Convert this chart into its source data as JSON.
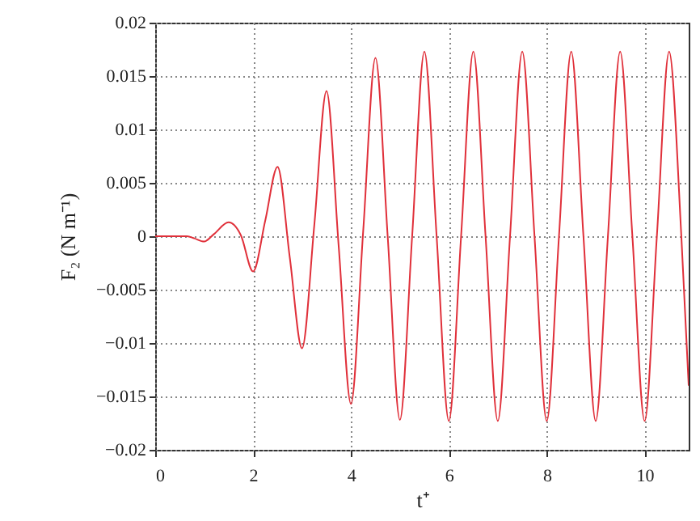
{
  "chart_data": {
    "type": "line",
    "xlabel": "t⁺",
    "ylabel": "F₂ (N m⁻¹)",
    "x": [
      0,
      0.25,
      0.5,
      0.65,
      0.8,
      1.0,
      1.2,
      1.5,
      1.75,
      2.0,
      2.25,
      2.5,
      2.75,
      3.0,
      3.25,
      3.5,
      3.75,
      4.0,
      4.25,
      4.5,
      4.75,
      5.0,
      5.25,
      5.5,
      5.75,
      6.0,
      6.25,
      6.5,
      6.75,
      7.0,
      7.25,
      7.5,
      7.75,
      8.0,
      8.25,
      8.5,
      8.75,
      9.0,
      9.25,
      9.5,
      9.75,
      10.0,
      10.25,
      10.5,
      10.75,
      10.9
    ],
    "series": [
      {
        "color": "#e0303a",
        "values": [
          0,
          0,
          0,
          0,
          -0.0002,
          -0.0005,
          0.0002,
          0.0013,
          0.0001,
          -0.0033,
          0.0015,
          0.0065,
          -0.002,
          -0.0105,
          0.001,
          0.0136,
          -0.001,
          -0.0157,
          0.0005,
          0.0167,
          0,
          -0.0172,
          0,
          0.0173,
          0,
          -0.0173,
          0,
          0.0173,
          0,
          -0.0173,
          0,
          0.0173,
          0,
          -0.0173,
          0,
          0.0173,
          0,
          -0.0173,
          0,
          0.0173,
          0,
          -0.0173,
          0,
          0.0173,
          0,
          -0.014
        ]
      }
    ],
    "xlim": [
      0,
      10.9
    ],
    "xticks": [
      0,
      2,
      4,
      6,
      8,
      10
    ],
    "ylim": [
      -0.02,
      0.02
    ],
    "yticks": [
      -0.02,
      -0.015,
      -0.01,
      -0.005,
      0,
      0.005,
      0.01,
      0.015,
      0.02
    ],
    "grid": true,
    "line_style": "solid",
    "marker": "none"
  }
}
